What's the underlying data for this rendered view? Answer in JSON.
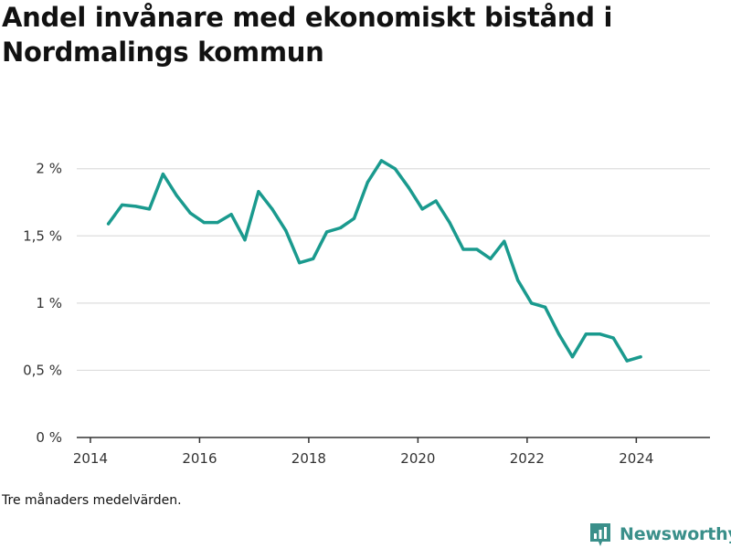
{
  "title": "Andel invånare med ekonomiskt bistånd i Nordmalings kommun",
  "note": "Tre månaders medelvärden.",
  "brand": {
    "name": "Newsworthy",
    "icon": "newsworthy-logo-icon",
    "color": "#3a8f8a"
  },
  "colors": {
    "line": "#1a9a8e",
    "grid": "#dddddd",
    "axis": "#333333"
  },
  "chart_data": {
    "type": "line",
    "title": "Andel invånare med ekonomiskt bistånd i Nordmalings kommun",
    "xlabel": "",
    "ylabel": "",
    "xlim": [
      2013.75,
      2025.35
    ],
    "ylim": [
      0,
      2.1
    ],
    "grid": true,
    "x_ticks": [
      2014,
      2016,
      2018,
      2020,
      2022,
      2024
    ],
    "x_tick_labels": [
      "2014",
      "2016",
      "2018",
      "2020",
      "2022",
      "2024"
    ],
    "y_ticks": [
      0,
      0.5,
      1,
      1.5,
      2
    ],
    "y_tick_labels": [
      "0 %",
      "0,5 %",
      "1 %",
      "1,5 %",
      "2 %"
    ],
    "series": [
      {
        "name": "",
        "x": [
          2014.33,
          2014.58,
          2014.83,
          2015.08,
          2015.33,
          2015.58,
          2015.83,
          2016.08,
          2016.33,
          2016.58,
          2016.83,
          2017.08,
          2017.33,
          2017.58,
          2017.83,
          2018.08,
          2018.33,
          2018.58,
          2018.83,
          2019.08,
          2019.33,
          2019.58,
          2019.83,
          2020.08,
          2020.33,
          2020.58,
          2020.83,
          2021.08,
          2021.33,
          2021.58,
          2021.83,
          2022.08,
          2022.33,
          2022.58,
          2022.83,
          2023.08,
          2023.33,
          2023.58,
          2023.83,
          2024.08
        ],
        "values": [
          1.59,
          1.73,
          1.72,
          1.7,
          1.96,
          1.8,
          1.67,
          1.6,
          1.6,
          1.66,
          1.47,
          1.83,
          1.7,
          1.54,
          1.3,
          1.33,
          1.53,
          1.56,
          1.63,
          1.9,
          2.06,
          2.0,
          1.86,
          1.7,
          1.76,
          1.6,
          1.4,
          1.4,
          1.33,
          1.46,
          1.17,
          1.0,
          0.97,
          0.77,
          0.6,
          0.77,
          0.77,
          0.74,
          0.57,
          0.6
        ]
      }
    ]
  }
}
